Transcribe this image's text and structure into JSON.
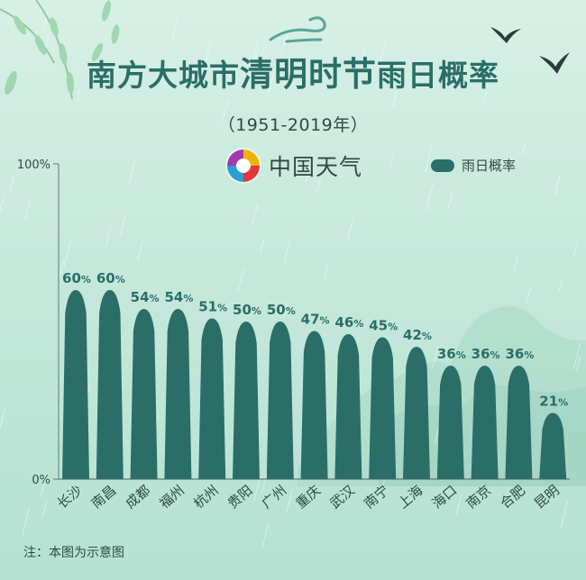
{
  "header": {
    "title_part_a": "南方大城市",
    "title_part_b": "清明时节",
    "title_part_c": "雨日概率",
    "subtitle": "（1951-2019年）",
    "brand_name": "中国天气"
  },
  "colors": {
    "bar": "#2b6e68",
    "title": "#2b6e68",
    "text": "#2f4a46",
    "background": "#c6e8db"
  },
  "icons": [
    "weather-china-logo-icon",
    "swallow-icon",
    "willow-branch-icon",
    "cloud-swirl-icon"
  ],
  "footnote": "注：本图为示意图",
  "chart_data": {
    "type": "bar",
    "categories": [
      "长沙",
      "南昌",
      "成都",
      "福州",
      "杭州",
      "贵阳",
      "广州",
      "重庆",
      "武汉",
      "南宁",
      "上海",
      "海口",
      "南京",
      "合肥",
      "昆明"
    ],
    "series": [
      {
        "name": "雨日概率",
        "values": [
          60,
          60,
          54,
          54,
          51,
          50,
          50,
          47,
          46,
          45,
          42,
          36,
          36,
          36,
          21
        ],
        "labels": [
          "60%",
          "60%",
          "54%",
          "54%",
          "51%",
          "50%",
          "50%",
          "47%",
          "46%",
          "45%",
          "42%",
          "36%",
          "36%",
          "36%",
          "21%"
        ]
      }
    ],
    "y_ticks": [
      {
        "value": 0,
        "label": "0%"
      },
      {
        "value": 100,
        "label": "100%"
      }
    ],
    "ylim": [
      0,
      100
    ],
    "grid": false,
    "legend": "top-right"
  }
}
